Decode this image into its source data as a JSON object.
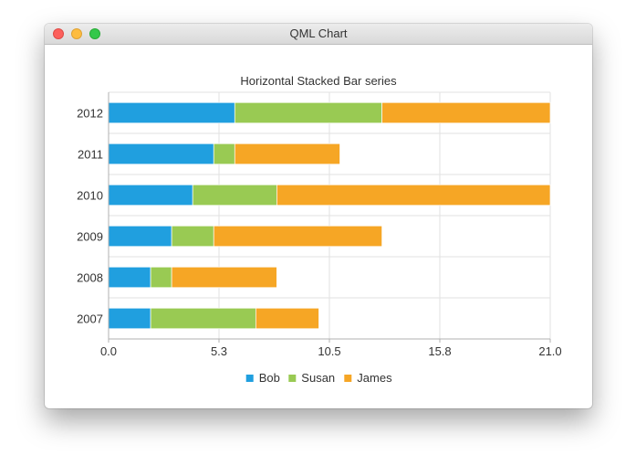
{
  "window": {
    "title": "QML Chart"
  },
  "chart_data": {
    "type": "bar",
    "orientation": "horizontal",
    "stacked": true,
    "title": "Horizontal Stacked Bar series",
    "categories": [
      "2007",
      "2008",
      "2009",
      "2010",
      "2011",
      "2012"
    ],
    "series": [
      {
        "name": "Bob",
        "color": "#209fdf",
        "values": [
          2,
          2,
          3,
          4,
          5,
          6
        ]
      },
      {
        "name": "Susan",
        "color": "#99ca53",
        "values": [
          5,
          1,
          2,
          4,
          1,
          7
        ]
      },
      {
        "name": "James",
        "color": "#f6a625",
        "values": [
          3,
          5,
          8,
          13,
          5,
          8
        ]
      }
    ],
    "xlim": [
      0,
      21
    ],
    "x_ticks": [
      "0.0",
      "5.3",
      "10.5",
      "15.8",
      "21.0"
    ],
    "grid": true,
    "legend": "bottom"
  }
}
